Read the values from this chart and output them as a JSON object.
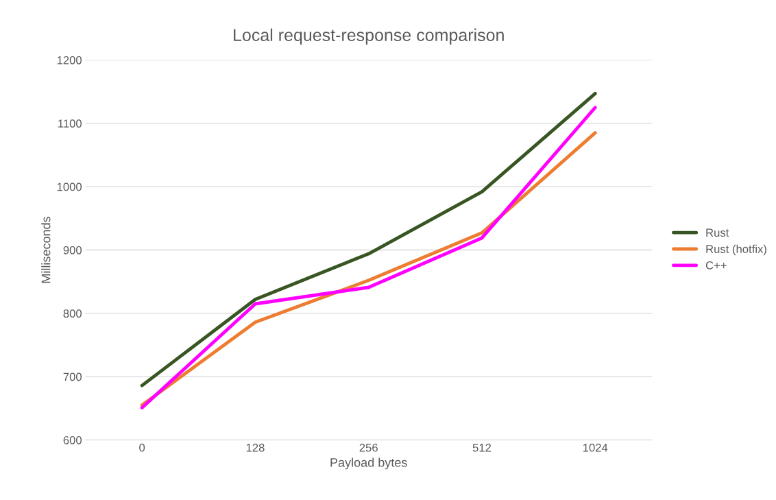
{
  "chart_data": {
    "type": "line",
    "title": "Local request-response comparison",
    "xlabel": "Payload bytes",
    "ylabel": "Milliseconds",
    "categories": [
      "0",
      "128",
      "256",
      "512",
      "1024"
    ],
    "series": [
      {
        "name": "Rust",
        "color": "#375623",
        "values": [
          686,
          822,
          894,
          992,
          1147
        ]
      },
      {
        "name": "Rust (hotfix)",
        "color": "#ed7d31",
        "values": [
          655,
          786,
          852,
          927,
          1085
        ]
      },
      {
        "name": "C++",
        "color": "#ff00ff",
        "values": [
          651,
          815,
          841,
          919,
          1125
        ]
      }
    ],
    "ylim": [
      600,
      1200
    ],
    "yticks": [
      600,
      700,
      800,
      900,
      1000,
      1100,
      1200
    ],
    "grid": "y",
    "legend": "right",
    "marker": "none",
    "line_style": "solid"
  }
}
